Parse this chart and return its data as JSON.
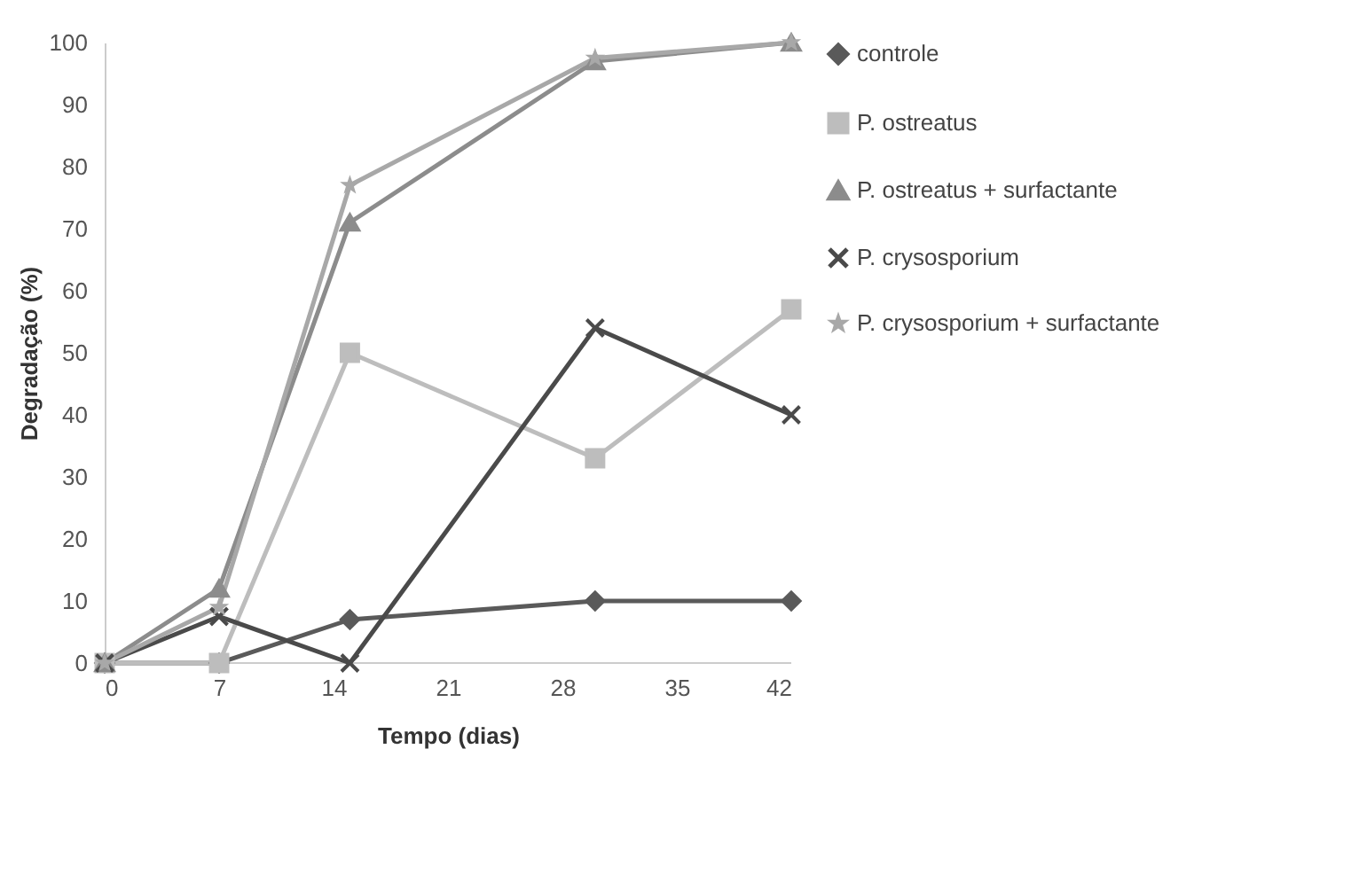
{
  "chart_data": {
    "type": "line",
    "xlabel": "Tempo (dias)",
    "ylabel": "Degradação (%)",
    "x": [
      0,
      7,
      15,
      30,
      42
    ],
    "xlim": [
      0,
      42
    ],
    "xticks": [
      0,
      7,
      14,
      21,
      28,
      35,
      42
    ],
    "ylim": [
      0,
      100
    ],
    "yticks": [
      0,
      10,
      20,
      30,
      40,
      50,
      60,
      70,
      80,
      90,
      100
    ],
    "grid": false,
    "legend": "right",
    "series": [
      {
        "name": "controle",
        "color": "#5a5a5a",
        "marker": "diamond",
        "values": [
          0,
          0,
          7,
          10,
          10
        ]
      },
      {
        "name": "P. ostreatus",
        "color": "#bdbdbd",
        "marker": "square",
        "values": [
          0,
          0,
          50,
          33,
          57
        ]
      },
      {
        "name": "P. ostreatus + surfactante",
        "color": "#8c8c8c",
        "marker": "triangle",
        "values": [
          0,
          12,
          71,
          97,
          100
        ]
      },
      {
        "name": "P. crysosporium",
        "color": "#4a4a4a",
        "marker": "cross",
        "values": [
          0,
          7.5,
          0,
          54,
          40
        ]
      },
      {
        "name": "P. crysosporium + surfactante",
        "color": "#a8a8a8",
        "marker": "star",
        "values": [
          0,
          9,
          77,
          97.5,
          100
        ]
      }
    ]
  }
}
